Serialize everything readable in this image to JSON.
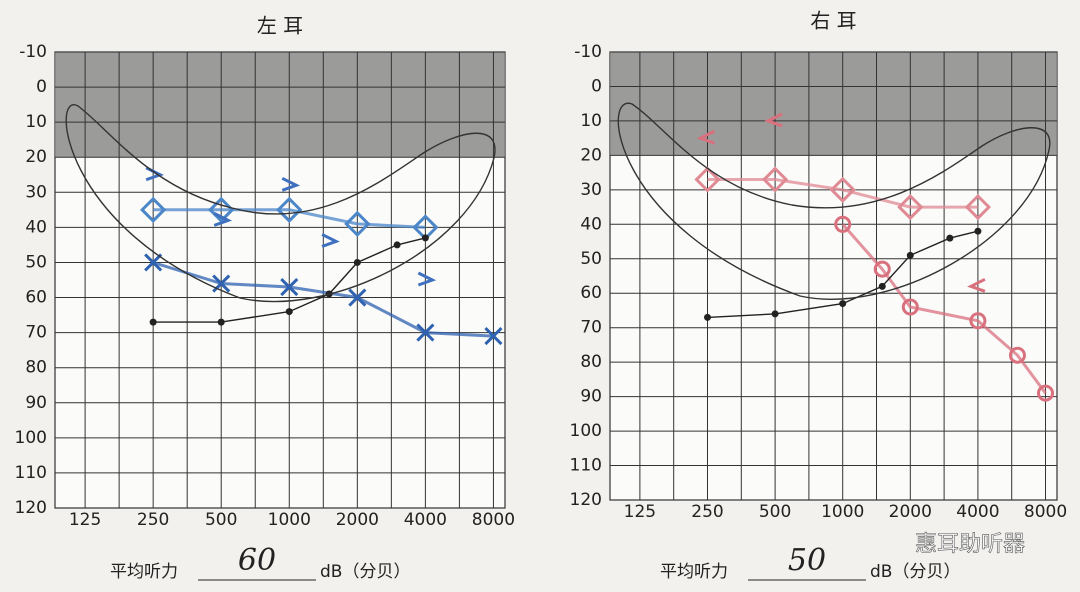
{
  "chart_data": [
    {
      "type": "line",
      "title": "左 耳",
      "xticks": [
        125,
        250,
        500,
        1000,
        2000,
        4000,
        8000
      ],
      "xlim": [
        92,
        9000
      ],
      "log_x": true,
      "ylim": [
        -10,
        120
      ],
      "yticks": [
        -10,
        0,
        10,
        20,
        30,
        40,
        50,
        60,
        70,
        80,
        90,
        100,
        110,
        120
      ],
      "shaded_range": [
        -10,
        20
      ],
      "grid": true,
      "series": [
        {
          "color": "#2f62b0",
          "marker": "x",
          "line": true,
          "x": [
            250,
            500,
            1000,
            2000,
            4000,
            8000
          ],
          "values": [
            50,
            56,
            57,
            60,
            70,
            71
          ]
        },
        {
          "color": "#4a86c8",
          "marker": "diamond",
          "line": true,
          "x": [
            250,
            500,
            1000,
            2000,
            4000
          ],
          "values": [
            35,
            35,
            35,
            39,
            40
          ]
        },
        {
          "color": "#3f70c0",
          "marker": ">",
          "line": false,
          "x": [
            250,
            500,
            1000,
            1500,
            4000
          ],
          "values": [
            25,
            38,
            28,
            44,
            55
          ]
        },
        {
          "color": "#222222",
          "marker": "dot",
          "line": true,
          "x": [
            250,
            500,
            1000,
            1500,
            2000,
            3000,
            4000
          ],
          "values": [
            67,
            67,
            64,
            59,
            50,
            45,
            43
          ]
        }
      ],
      "footer_label": "平均听力",
      "footer_value": "60",
      "footer_unit": "dB（分贝）"
    },
    {
      "type": "line",
      "title": "右 耳",
      "xticks": [
        125,
        250,
        500,
        1000,
        2000,
        4000,
        8000
      ],
      "xlim": [
        92,
        9000
      ],
      "log_x": true,
      "ylim": [
        -10,
        120
      ],
      "yticks": [
        -10,
        0,
        10,
        20,
        30,
        40,
        50,
        60,
        70,
        80,
        90,
        100,
        110,
        120
      ],
      "shaded_range": [
        -10,
        20
      ],
      "grid": true,
      "series": [
        {
          "color": "#e08a94",
          "marker": "diamond",
          "line": true,
          "x": [
            250,
            500,
            1000,
            2000,
            4000
          ],
          "values": [
            27,
            27,
            30,
            35,
            35
          ]
        },
        {
          "color": "#d9707e",
          "marker": "circle",
          "line": true,
          "x": [
            1000,
            1500,
            2000,
            4000,
            6000,
            8000
          ],
          "values": [
            40,
            53,
            64,
            68,
            78,
            89
          ]
        },
        {
          "color": "#d9707e",
          "marker": "<",
          "line": false,
          "x": [
            250,
            500,
            4000
          ],
          "values": [
            15,
            10,
            58
          ]
        },
        {
          "color": "#222222",
          "marker": "dot",
          "line": true,
          "x": [
            250,
            500,
            1000,
            1500,
            2000,
            3000,
            4000
          ],
          "values": [
            67,
            66,
            63,
            58,
            49,
            44,
            42
          ]
        }
      ],
      "footer_label": "平均听力",
      "footer_value": "50",
      "footer_unit": "dB（分贝）"
    }
  ],
  "watermark": "惠耳助听器"
}
